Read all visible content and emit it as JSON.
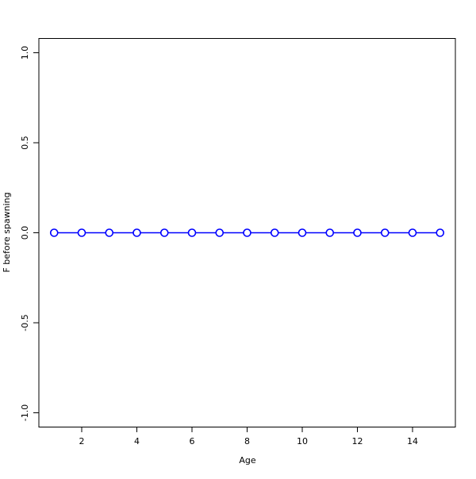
{
  "chart_data": {
    "type": "line",
    "title": "",
    "xlabel": "Age",
    "ylabel": "F before spawning",
    "x": [
      1,
      2,
      3,
      4,
      5,
      6,
      7,
      8,
      9,
      10,
      11,
      12,
      13,
      14,
      15
    ],
    "series": [
      {
        "values": [
          0,
          0,
          0,
          0,
          0,
          0,
          0,
          0,
          0,
          0,
          0,
          0,
          0,
          0,
          0
        ],
        "color": "#0000ff",
        "marker": "open-circle"
      }
    ],
    "xticks": [
      2,
      4,
      6,
      8,
      10,
      12,
      14
    ],
    "yticks": [
      -1.0,
      -0.5,
      0.0,
      0.5,
      1.0
    ],
    "ytick_labels": [
      "-1.0",
      "-0.5",
      "0.0",
      "0.5",
      "1.0"
    ],
    "xlim": [
      0.44,
      15.56
    ],
    "ylim": [
      -1.08,
      1.08
    ],
    "grid": false
  }
}
